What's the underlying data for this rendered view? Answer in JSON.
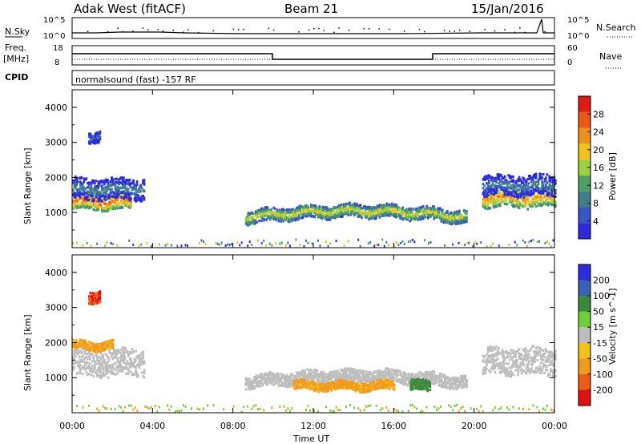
{
  "header": {
    "station": "Adak West (fitACF)",
    "beam": "Beam 21",
    "date": "15/Jan/2016"
  },
  "panels": {
    "nsky_label": "N.Sky",
    "nsky_ticks": [
      "10^5",
      "10^0"
    ],
    "nsearch_label": "N.Search",
    "nsearch_ticks": [
      "10^5",
      "10^0"
    ],
    "freq_label_1": "Freq.",
    "freq_label_2": "[MHz]",
    "freq_ticks": [
      "18",
      "8"
    ],
    "nave_label": "Nave",
    "nave_ticks": [
      "60",
      "0"
    ],
    "cpid_label": "CPID",
    "cpid_text": "normalsound (fast) -157 RF"
  },
  "colors": {
    "power": [
      "#2b2bdb",
      "#3757c7",
      "#3f7f8a",
      "#4f9f60",
      "#9fcf3f",
      "#f4c21c",
      "#f0901a",
      "#ea5a17",
      "#e01a14"
    ],
    "velocity": [
      "#2c2ce0",
      "#3a63b8",
      "#3a8a3a",
      "#6ed037",
      "#bdbdbd",
      "#f2c21c",
      "#f29a1b",
      "#ee5c14",
      "#e0120f"
    ]
  },
  "chart_data": [
    {
      "type": "heatmap",
      "title": "Power",
      "ylabel": "Slant Range [km]",
      "xlabel": "Time UT",
      "x_ticks": [
        "00:00",
        "04:00",
        "08:00",
        "12:00",
        "16:00",
        "20:00",
        "00:00"
      ],
      "x_range_hours": [
        0,
        24
      ],
      "ylim": [
        0,
        4500
      ],
      "y_ticks": [
        1000,
        2000,
        3000,
        4000
      ],
      "colorbar_label": "Power [dB]",
      "colorbar_ticks": [
        4,
        8,
        12,
        16,
        20,
        24,
        28
      ],
      "bands": [
        {
          "start_hour": 0.0,
          "end_hour": 2.9,
          "center_km": 1350,
          "half_width_km": 230,
          "value": 26
        },
        {
          "start_hour": 0.0,
          "end_hour": 3.6,
          "center_km": 1700,
          "half_width_km": 300,
          "value": 12
        },
        {
          "start_hour": 0.8,
          "end_hour": 1.4,
          "center_km": 3200,
          "half_width_km": 150,
          "value": 10
        },
        {
          "start_hour": 8.6,
          "end_hour": 19.6,
          "center_km": 900,
          "half_width_km": 180,
          "value": 20
        },
        {
          "start_hour": 20.4,
          "end_hour": 24.0,
          "center_km": 1450,
          "half_width_km": 260,
          "value": 24
        },
        {
          "start_hour": 20.4,
          "end_hour": 24.0,
          "center_km": 1800,
          "half_width_km": 300,
          "value": 11
        }
      ]
    },
    {
      "type": "heatmap",
      "title": "Velocity",
      "ylabel": "Slant Range [km]",
      "xlabel": "Time UT",
      "x_ticks": [
        "00:00",
        "04:00",
        "08:00",
        "12:00",
        "16:00",
        "20:00",
        "00:00"
      ],
      "x_range_hours": [
        0,
        24
      ],
      "ylim": [
        0,
        4500
      ],
      "y_ticks": [
        1000,
        2000,
        3000,
        4000
      ],
      "colorbar_label": "Velocity [m s^-1]",
      "colorbar_ticks": [
        "200",
        "100",
        "50",
        "15",
        "-15",
        "-50",
        "-100",
        "-200"
      ],
      "bands": [
        {
          "start_hour": 0.0,
          "end_hour": 3.6,
          "center_km": 1450,
          "half_width_km": 380,
          "value": 0
        },
        {
          "start_hour": 0.0,
          "end_hour": 2.0,
          "center_km": 1950,
          "half_width_km": 120,
          "value": -40
        },
        {
          "start_hour": 0.8,
          "end_hour": 1.4,
          "center_km": 3350,
          "half_width_km": 160,
          "value": -150
        },
        {
          "start_hour": 8.6,
          "end_hour": 19.6,
          "center_km": 900,
          "half_width_km": 180,
          "value": 0
        },
        {
          "start_hour": 11.0,
          "end_hour": 16.0,
          "center_km": 800,
          "half_width_km": 120,
          "value": -40
        },
        {
          "start_hour": 16.8,
          "end_hour": 17.8,
          "center_km": 800,
          "half_width_km": 150,
          "value": 60
        },
        {
          "start_hour": 20.4,
          "end_hour": 24.0,
          "center_km": 1500,
          "half_width_km": 380,
          "value": 0
        }
      ]
    }
  ]
}
